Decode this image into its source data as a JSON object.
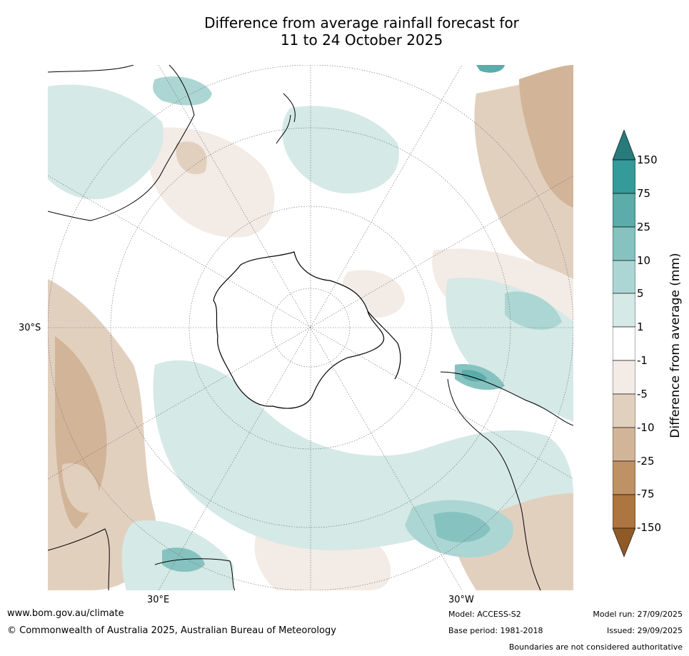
{
  "title": {
    "line1": "Difference from average rainfall forecast for",
    "line2": "11 to 24 October 2025"
  },
  "map": {
    "projection": "south-polar-stereographic",
    "lat_label_left": "30°S",
    "lon_label_east": "30°E",
    "lon_label_west": "30°W"
  },
  "colorbar": {
    "title": "Difference from average (mm)",
    "ticks": [
      "150",
      "75",
      "25",
      "10",
      "5",
      "1",
      "-1",
      "-5",
      "-10",
      "-25",
      "-75",
      "-150"
    ],
    "colors": {
      "over_150": "#287a7b",
      "c_75_150": "#359a9a",
      "c_25_75": "#5bacaa",
      "c_10_25": "#86c3c0",
      "c_5_10": "#acd6d4",
      "c_1_5": "#d5e9e7",
      "c_neg1_1": "#ffffff",
      "c_neg5_neg1": "#f3ebe5",
      "c_neg10_neg5": "#e2d0bf",
      "c_neg25_neg10": "#d2b598",
      "c_neg75_neg25": "#bf9265",
      "c_neg150_neg75": "#ad753f",
      "under_neg150": "#8f5a26"
    }
  },
  "footer": {
    "url": "www.bom.gov.au/climate",
    "copyright": "© Commonwealth of Australia 2025, Australian Bureau of Meteorology",
    "model": "Model: ACCESS-S2",
    "base_period": "Base period: 1981-2018",
    "model_run": "Model run: 27/09/2025",
    "issued": "Issued: 29/09/2025",
    "disclaimer": "Boundaries are not considered authoritative"
  }
}
